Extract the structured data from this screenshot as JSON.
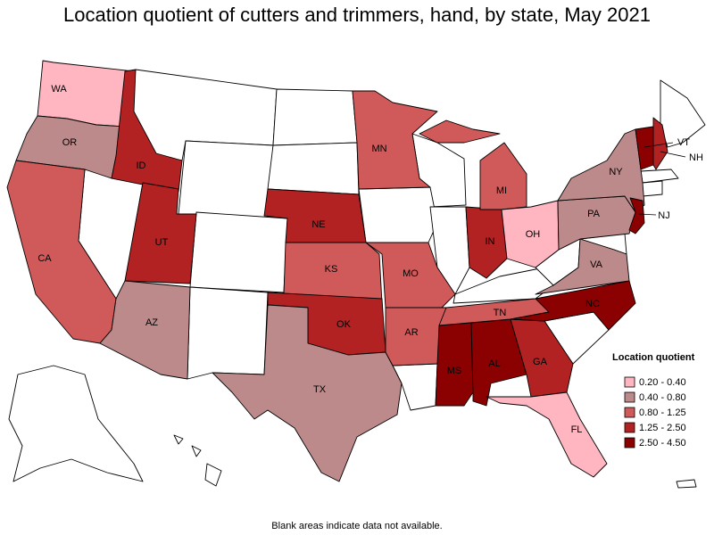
{
  "title": "Location quotient of cutters and trimmers, hand, by state, May 2021",
  "footnote": "Blank areas indicate data not available.",
  "legend": {
    "title": "Location quotient",
    "items": [
      {
        "label": "0.20 - 0.40",
        "color": "#ffb6c1"
      },
      {
        "label": "0.40 - 0.80",
        "color": "#bc8a8a"
      },
      {
        "label": "0.80 - 1.25",
        "color": "#d05a5a"
      },
      {
        "label": "1.25 - 2.50",
        "color": "#b22222"
      },
      {
        "label": "2.50 - 4.50",
        "color": "#8b0000"
      }
    ]
  },
  "states": [
    {
      "code": "WA",
      "class": "0.20 - 0.40"
    },
    {
      "code": "OR",
      "class": "0.40 - 0.80"
    },
    {
      "code": "CA",
      "class": "0.80 - 1.25"
    },
    {
      "code": "ID",
      "class": "1.25 - 2.50"
    },
    {
      "code": "UT",
      "class": "1.25 - 2.50"
    },
    {
      "code": "AZ",
      "class": "0.40 - 0.80"
    },
    {
      "code": "NE",
      "class": "1.25 - 2.50"
    },
    {
      "code": "KS",
      "class": "0.80 - 1.25"
    },
    {
      "code": "OK",
      "class": "1.25 - 2.50"
    },
    {
      "code": "TX",
      "class": "0.40 - 0.80"
    },
    {
      "code": "MN",
      "class": "0.80 - 1.25"
    },
    {
      "code": "MO",
      "class": "0.80 - 1.25"
    },
    {
      "code": "AR",
      "class": "0.80 - 1.25"
    },
    {
      "code": "MS",
      "class": "2.50 - 4.50"
    },
    {
      "code": "AL",
      "class": "2.50 - 4.50"
    },
    {
      "code": "GA",
      "class": "1.25 - 2.50"
    },
    {
      "code": "FL",
      "class": "0.20 - 0.40"
    },
    {
      "code": "TN",
      "class": "0.80 - 1.25"
    },
    {
      "code": "NC",
      "class": "2.50 - 4.50"
    },
    {
      "code": "VA",
      "class": "0.40 - 0.80"
    },
    {
      "code": "IN",
      "class": "1.25 - 2.50"
    },
    {
      "code": "MI",
      "class": "0.80 - 1.25"
    },
    {
      "code": "OH",
      "class": "0.20 - 0.40"
    },
    {
      "code": "PA",
      "class": "0.40 - 0.80"
    },
    {
      "code": "NY",
      "class": "0.40 - 0.80"
    },
    {
      "code": "NJ",
      "class": "2.50 - 4.50"
    },
    {
      "code": "VT",
      "class": "2.50 - 4.50"
    },
    {
      "code": "NH",
      "class": "1.25 - 2.50"
    }
  ],
  "no_data_color": "#ffffff"
}
